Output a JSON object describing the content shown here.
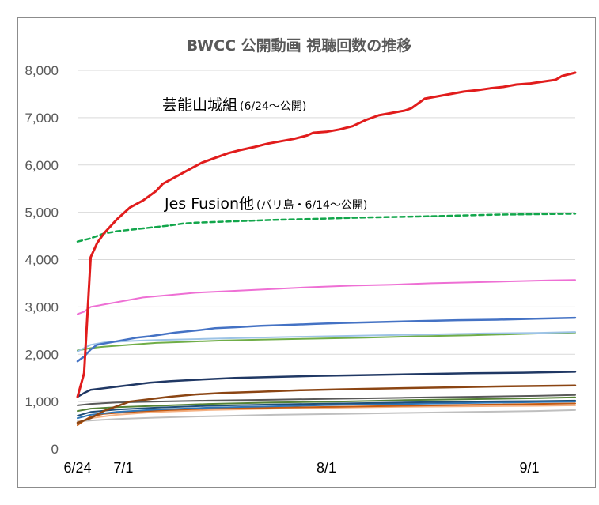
{
  "chart_data": {
    "type": "line",
    "title": "BWCC 公開動画 視聴回数の推移",
    "xlabel": "",
    "ylabel": "",
    "x_tick_labels": [
      "6/24",
      "7/1",
      "8/1",
      "9/1"
    ],
    "x_tick_days": [
      0,
      7,
      38,
      69
    ],
    "x_range_days": [
      0,
      76
    ],
    "ylim": [
      0,
      8000
    ],
    "y_ticks": [
      0,
      1000,
      2000,
      3000,
      4000,
      5000,
      6000,
      7000,
      8000
    ],
    "y_tick_labels": [
      "0",
      "1,000",
      "2,000",
      "3,000",
      "4,000",
      "5,000",
      "6,000",
      "7,000",
      "8,000"
    ],
    "grid": true,
    "annotations": [
      {
        "text": "芸能山城組",
        "sub": "(6/24～公開)"
      },
      {
        "text": "Jes Fusion他",
        "sub": "(バリ島・6/14～公開)"
      }
    ],
    "series": [
      {
        "color": "#e11c1c",
        "width": 3,
        "dash": false,
        "points": [
          [
            0,
            1100
          ],
          [
            1,
            1600
          ],
          [
            2,
            4050
          ],
          [
            3,
            4350
          ],
          [
            4,
            4550
          ],
          [
            6,
            4850
          ],
          [
            8,
            5100
          ],
          [
            10,
            5250
          ],
          [
            12,
            5450
          ],
          [
            13,
            5600
          ],
          [
            15,
            5750
          ],
          [
            17,
            5900
          ],
          [
            19,
            6050
          ],
          [
            21,
            6150
          ],
          [
            23,
            6250
          ],
          [
            25,
            6320
          ],
          [
            27,
            6380
          ],
          [
            29,
            6450
          ],
          [
            31,
            6500
          ],
          [
            33,
            6550
          ],
          [
            35,
            6620
          ],
          [
            36,
            6680
          ],
          [
            38,
            6700
          ],
          [
            40,
            6750
          ],
          [
            42,
            6820
          ],
          [
            44,
            6950
          ],
          [
            46,
            7050
          ],
          [
            48,
            7100
          ],
          [
            50,
            7150
          ],
          [
            51,
            7200
          ],
          [
            52,
            7300
          ],
          [
            53,
            7400
          ],
          [
            55,
            7450
          ],
          [
            57,
            7500
          ],
          [
            59,
            7550
          ],
          [
            61,
            7580
          ],
          [
            63,
            7620
          ],
          [
            65,
            7650
          ],
          [
            67,
            7700
          ],
          [
            69,
            7720
          ],
          [
            71,
            7760
          ],
          [
            73,
            7800
          ],
          [
            74,
            7880
          ],
          [
            76,
            7950
          ]
        ]
      },
      {
        "color": "#12a64b",
        "width": 2.5,
        "dash": true,
        "points": [
          [
            0,
            4380
          ],
          [
            2,
            4450
          ],
          [
            4,
            4550
          ],
          [
            6,
            4600
          ],
          [
            8,
            4630
          ],
          [
            10,
            4660
          ],
          [
            12,
            4690
          ],
          [
            14,
            4720
          ],
          [
            16,
            4760
          ],
          [
            18,
            4780
          ],
          [
            22,
            4800
          ],
          [
            26,
            4820
          ],
          [
            30,
            4840
          ],
          [
            36,
            4860
          ],
          [
            44,
            4890
          ],
          [
            52,
            4910
          ],
          [
            58,
            4930
          ],
          [
            64,
            4950
          ],
          [
            70,
            4960
          ],
          [
            76,
            4970
          ]
        ]
      },
      {
        "color": "#ee6fd4",
        "width": 2,
        "dash": false,
        "points": [
          [
            0,
            2850
          ],
          [
            1,
            2900
          ],
          [
            2,
            3000
          ],
          [
            4,
            3050
          ],
          [
            6,
            3100
          ],
          [
            8,
            3150
          ],
          [
            10,
            3200
          ],
          [
            14,
            3250
          ],
          [
            18,
            3300
          ],
          [
            24,
            3340
          ],
          [
            30,
            3380
          ],
          [
            36,
            3420
          ],
          [
            42,
            3450
          ],
          [
            48,
            3470
          ],
          [
            54,
            3500
          ],
          [
            60,
            3520
          ],
          [
            66,
            3540
          ],
          [
            72,
            3560
          ],
          [
            76,
            3570
          ]
        ]
      },
      {
        "color": "#4472c4",
        "width": 2.5,
        "dash": false,
        "points": [
          [
            0,
            1850
          ],
          [
            1,
            1950
          ],
          [
            2,
            2100
          ],
          [
            3,
            2200
          ],
          [
            5,
            2250
          ],
          [
            7,
            2300
          ],
          [
            9,
            2350
          ],
          [
            11,
            2380
          ],
          [
            13,
            2420
          ],
          [
            15,
            2460
          ],
          [
            18,
            2500
          ],
          [
            21,
            2550
          ],
          [
            24,
            2570
          ],
          [
            28,
            2600
          ],
          [
            32,
            2620
          ],
          [
            36,
            2640
          ],
          [
            40,
            2660
          ],
          [
            46,
            2680
          ],
          [
            52,
            2700
          ],
          [
            58,
            2720
          ],
          [
            64,
            2730
          ],
          [
            70,
            2750
          ],
          [
            76,
            2770
          ]
        ]
      },
      {
        "color": "#9dc3e6",
        "width": 2,
        "dash": false,
        "points": [
          [
            0,
            2060
          ],
          [
            2,
            2200
          ],
          [
            4,
            2250
          ],
          [
            8,
            2280
          ],
          [
            12,
            2300
          ],
          [
            18,
            2320
          ],
          [
            24,
            2340
          ],
          [
            30,
            2360
          ],
          [
            38,
            2380
          ],
          [
            46,
            2400
          ],
          [
            54,
            2420
          ],
          [
            62,
            2440
          ],
          [
            70,
            2450
          ],
          [
            76,
            2470
          ]
        ]
      },
      {
        "color": "#70ad47",
        "width": 2,
        "dash": false,
        "points": [
          [
            0,
            2080
          ],
          [
            2,
            2130
          ],
          [
            4,
            2160
          ],
          [
            8,
            2200
          ],
          [
            12,
            2240
          ],
          [
            16,
            2260
          ],
          [
            22,
            2290
          ],
          [
            28,
            2310
          ],
          [
            36,
            2330
          ],
          [
            44,
            2350
          ],
          [
            52,
            2380
          ],
          [
            60,
            2400
          ],
          [
            68,
            2430
          ],
          [
            76,
            2460
          ]
        ]
      },
      {
        "color": "#203864",
        "width": 2.5,
        "dash": false,
        "points": [
          [
            0,
            1100
          ],
          [
            1,
            1180
          ],
          [
            2,
            1250
          ],
          [
            5,
            1300
          ],
          [
            8,
            1350
          ],
          [
            11,
            1400
          ],
          [
            14,
            1430
          ],
          [
            18,
            1460
          ],
          [
            24,
            1500
          ],
          [
            30,
            1520
          ],
          [
            36,
            1540
          ],
          [
            44,
            1560
          ],
          [
            52,
            1580
          ],
          [
            60,
            1600
          ],
          [
            68,
            1610
          ],
          [
            76,
            1630
          ]
        ]
      },
      {
        "color": "#8b4513",
        "width": 2.5,
        "dash": false,
        "points": [
          [
            0,
            550
          ],
          [
            2,
            650
          ],
          [
            4,
            800
          ],
          [
            6,
            900
          ],
          [
            8,
            1000
          ],
          [
            11,
            1050
          ],
          [
            14,
            1100
          ],
          [
            18,
            1150
          ],
          [
            22,
            1180
          ],
          [
            28,
            1210
          ],
          [
            34,
            1240
          ],
          [
            40,
            1260
          ],
          [
            48,
            1280
          ],
          [
            56,
            1300
          ],
          [
            64,
            1320
          ],
          [
            76,
            1340
          ]
        ]
      },
      {
        "color": "#595959",
        "width": 2,
        "dash": false,
        "points": [
          [
            0,
            920
          ],
          [
            2,
            950
          ],
          [
            6,
            980
          ],
          [
            12,
            1000
          ],
          [
            20,
            1020
          ],
          [
            30,
            1040
          ],
          [
            40,
            1060
          ],
          [
            50,
            1080
          ],
          [
            60,
            1100
          ],
          [
            70,
            1120
          ],
          [
            76,
            1140
          ]
        ]
      },
      {
        "color": "#548235",
        "width": 2,
        "dash": false,
        "points": [
          [
            0,
            800
          ],
          [
            2,
            850
          ],
          [
            6,
            880
          ],
          [
            12,
            910
          ],
          [
            20,
            950
          ],
          [
            30,
            980
          ],
          [
            40,
            1000
          ],
          [
            50,
            1030
          ],
          [
            60,
            1050
          ],
          [
            70,
            1070
          ],
          [
            76,
            1090
          ]
        ]
      },
      {
        "color": "#1f4e79",
        "width": 2,
        "dash": false,
        "points": [
          [
            0,
            700
          ],
          [
            2,
            780
          ],
          [
            6,
            830
          ],
          [
            12,
            870
          ],
          [
            20,
            910
          ],
          [
            30,
            940
          ],
          [
            40,
            960
          ],
          [
            50,
            980
          ],
          [
            60,
            1000
          ],
          [
            70,
            1010
          ],
          [
            76,
            1020
          ]
        ]
      },
      {
        "color": "#2e75b6",
        "width": 2,
        "dash": false,
        "points": [
          [
            0,
            650
          ],
          [
            2,
            720
          ],
          [
            6,
            780
          ],
          [
            12,
            830
          ],
          [
            20,
            870
          ],
          [
            30,
            900
          ],
          [
            40,
            930
          ],
          [
            50,
            950
          ],
          [
            60,
            970
          ],
          [
            70,
            990
          ],
          [
            76,
            1000
          ]
        ]
      },
      {
        "color": "#c55a11",
        "width": 2,
        "dash": false,
        "points": [
          [
            0,
            500
          ],
          [
            1,
            600
          ],
          [
            2,
            680
          ],
          [
            4,
            740
          ],
          [
            8,
            780
          ],
          [
            14,
            820
          ],
          [
            20,
            850
          ],
          [
            30,
            870
          ],
          [
            40,
            890
          ],
          [
            50,
            910
          ],
          [
            60,
            930
          ],
          [
            70,
            950
          ],
          [
            76,
            960
          ]
        ]
      },
      {
        "color": "#f4b183",
        "width": 2,
        "dash": false,
        "points": [
          [
            0,
            560
          ],
          [
            2,
            650
          ],
          [
            6,
            720
          ],
          [
            12,
            780
          ],
          [
            20,
            820
          ],
          [
            30,
            850
          ],
          [
            40,
            870
          ],
          [
            50,
            890
          ],
          [
            60,
            900
          ],
          [
            70,
            910
          ],
          [
            76,
            920
          ]
        ]
      },
      {
        "color": "#bfbfbf",
        "width": 2,
        "dash": false,
        "points": [
          [
            0,
            580
          ],
          [
            2,
            600
          ],
          [
            6,
            630
          ],
          [
            12,
            660
          ],
          [
            20,
            690
          ],
          [
            30,
            720
          ],
          [
            40,
            740
          ],
          [
            50,
            760
          ],
          [
            60,
            780
          ],
          [
            70,
            800
          ],
          [
            76,
            820
          ]
        ]
      }
    ]
  }
}
